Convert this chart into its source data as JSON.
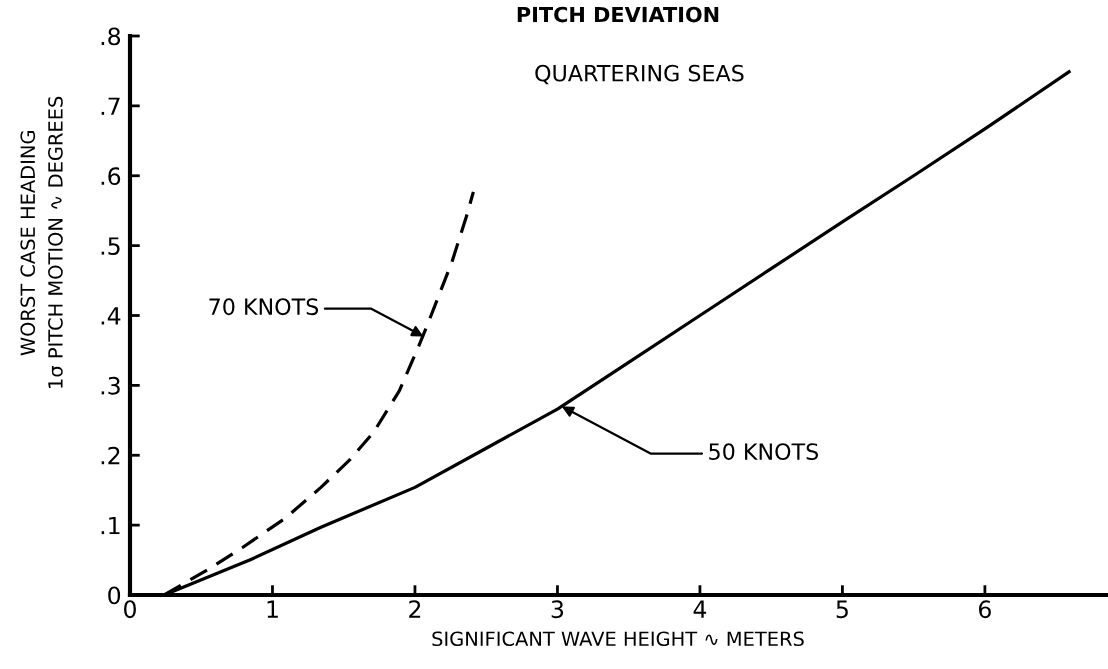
{
  "chart_data": {
    "type": "line",
    "title": "PITCH DEVIATION",
    "xlabel": "SIGNIFICANT WAVE HEIGHT ∿ METERS",
    "ylabel": "WORST CASE HEADING\n1σ PITCH MOTION ∿ DEGREES",
    "series": [
      {
        "color": "#000000",
        "line_style": "dashed",
        "x": [
          0.24,
          0.56,
          0.79,
          1.09,
          1.34,
          1.54,
          1.71,
          1.89,
          2.03,
          2.09,
          2.26,
          2.36,
          2.41
        ],
        "values": [
          0,
          0.038,
          0.068,
          0.11,
          0.154,
          0.193,
          0.233,
          0.292,
          0.358,
          0.388,
          0.477,
          0.541,
          0.577
        ]
      },
      {
        "color": "#000000",
        "line_style": "solid",
        "x": [
          0.24,
          0.84,
          1.34,
          2.0,
          2.5,
          3.0,
          3.5,
          4.0,
          4.5,
          5.0,
          5.5,
          6.0,
          6.6
        ],
        "values": [
          0,
          0.05,
          0.097,
          0.154,
          0.21,
          0.266,
          0.333,
          0.4,
          0.467,
          0.534,
          0.6,
          0.667,
          0.75
        ]
      }
    ],
    "xlim": [
      0,
      6.85
    ],
    "xticks": [
      0,
      1,
      2,
      3,
      4,
      5,
      6
    ],
    "ylim": [
      0,
      0.8
    ],
    "yticks": [
      0,
      {
        "value": 0.1,
        "label": ".1"
      },
      {
        "value": 0.2,
        "label": ".2"
      },
      {
        "value": 0.3,
        "label": ".3"
      },
      {
        "value": 0.4,
        "label": ".4"
      },
      {
        "value": 0.5,
        "label": ".5"
      },
      {
        "value": 0.6,
        "label": ".6"
      },
      {
        "value": 0.7,
        "label": ".7"
      },
      {
        "value": 0.8,
        "label": ".8"
      }
    ],
    "annotations": [
      "QUARTERING SEAS",
      {
        "text": "70 KNOTS",
        "x": 2.06,
        "y": 0.37
      },
      {
        "text": "50 KNOTS",
        "x": 3.03,
        "y": 0.27
      }
    ]
  }
}
